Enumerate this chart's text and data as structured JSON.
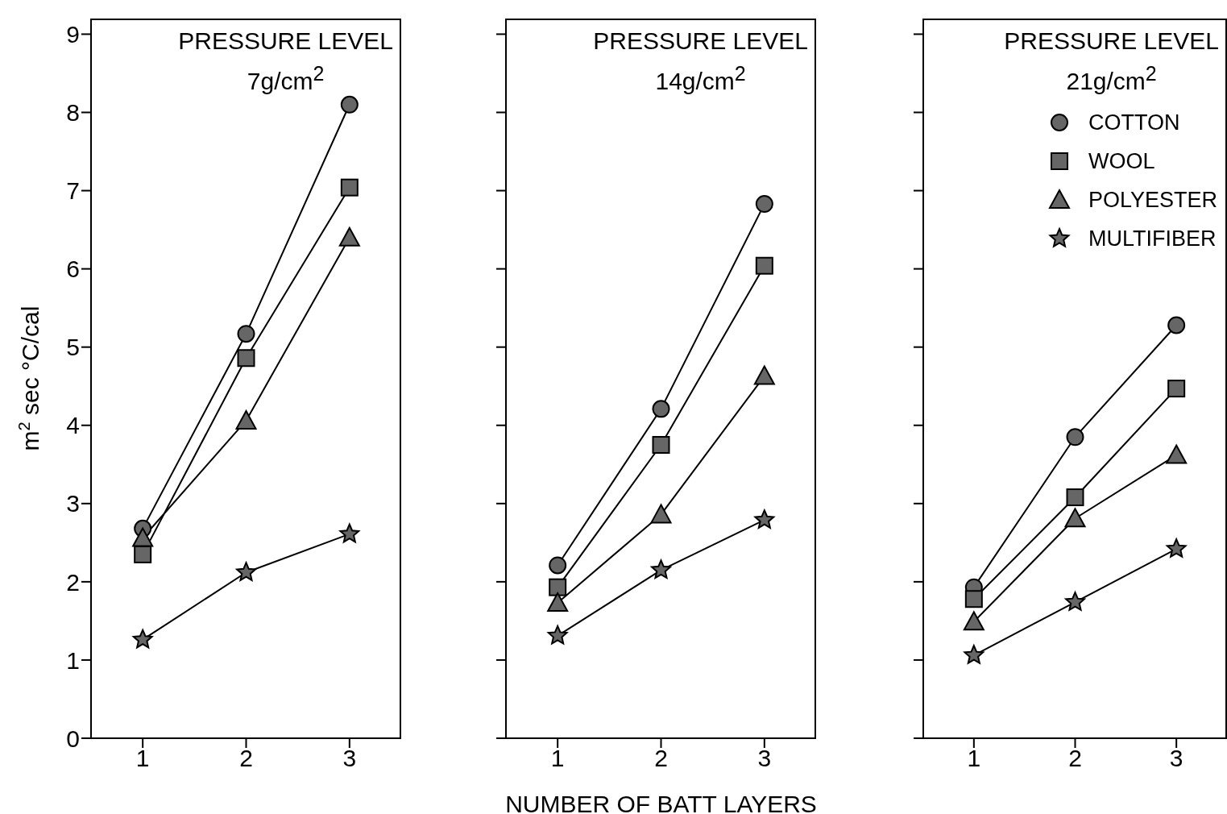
{
  "chart_data": [
    {
      "type": "line",
      "title": "PRESSURE LEVEL",
      "subtitle": "7g/cm$^{2}$",
      "ylabel": "m$^{2}$ sec °C/cal",
      "x": [
        1,
        2,
        3
      ],
      "xlim": [
        0.5,
        3.5
      ],
      "xticks": [
        1,
        2,
        3
      ],
      "ylim": [
        0,
        9.2
      ],
      "yticks": [
        0,
        1,
        2,
        3,
        4,
        5,
        6,
        7,
        8,
        9
      ],
      "grid": false,
      "legend": false,
      "line_style": "solid",
      "series": [
        {
          "color": "#000000",
          "marker": "circle",
          "values": [
            2.68,
            5.17,
            8.1
          ]
        },
        {
          "color": "#000000",
          "marker": "square",
          "values": [
            2.35,
            4.86,
            7.04
          ]
        },
        {
          "color": "#000000",
          "marker": "triangle",
          "values": [
            2.56,
            4.06,
            6.4
          ]
        },
        {
          "color": "#000000",
          "marker": "star",
          "values": [
            1.26,
            2.12,
            2.61
          ]
        }
      ]
    },
    {
      "type": "line",
      "title": "PRESSURE LEVEL",
      "subtitle": "14g/cm$^{2}$",
      "xlabel": "NUMBER OF BATT LAYERS",
      "x": [
        1,
        2,
        3
      ],
      "xlim": [
        0.5,
        3.5
      ],
      "xticks": [
        1,
        2,
        3
      ],
      "ylim": [
        0,
        9.2
      ],
      "yticks": [
        0,
        1,
        2,
        3,
        4,
        5,
        6,
        7,
        8,
        9
      ],
      "tick_labels": "x",
      "grid": false,
      "legend": false,
      "line_style": "solid",
      "series": [
        {
          "color": "#000000",
          "marker": "circle",
          "values": [
            2.21,
            4.21,
            6.83
          ]
        },
        {
          "color": "#000000",
          "marker": "square",
          "values": [
            1.93,
            3.75,
            6.04
          ]
        },
        {
          "color": "#000000",
          "marker": "triangle",
          "values": [
            1.73,
            2.86,
            4.63
          ]
        },
        {
          "color": "#000000",
          "marker": "star",
          "values": [
            1.31,
            2.15,
            2.79
          ]
        }
      ]
    },
    {
      "type": "line",
      "title": "PRESSURE LEVEL",
      "subtitle": "21g/cm$^{2}$",
      "x": [
        1,
        2,
        3
      ],
      "xlim": [
        0.5,
        3.5
      ],
      "xticks": [
        1,
        2,
        3
      ],
      "ylim": [
        0,
        9.2
      ],
      "yticks": [
        0,
        1,
        2,
        3,
        4,
        5,
        6,
        7,
        8,
        9
      ],
      "tick_labels": "x",
      "grid": false,
      "legend": "top right",
      "line_style": "solid",
      "series": [
        {
          "name": "COTTON",
          "color": "#000000",
          "marker": "circle",
          "values": [
            1.93,
            3.85,
            5.28
          ]
        },
        {
          "name": "WOOL",
          "color": "#000000",
          "marker": "square",
          "values": [
            1.78,
            3.08,
            4.47
          ]
        },
        {
          "name": "POLYESTER",
          "color": "#000000",
          "marker": "triangle",
          "values": [
            1.49,
            2.81,
            3.62
          ]
        },
        {
          "name": "MULTIFIBER",
          "color": "#000000",
          "marker": "star",
          "values": [
            1.06,
            1.74,
            2.42
          ]
        }
      ]
    }
  ]
}
